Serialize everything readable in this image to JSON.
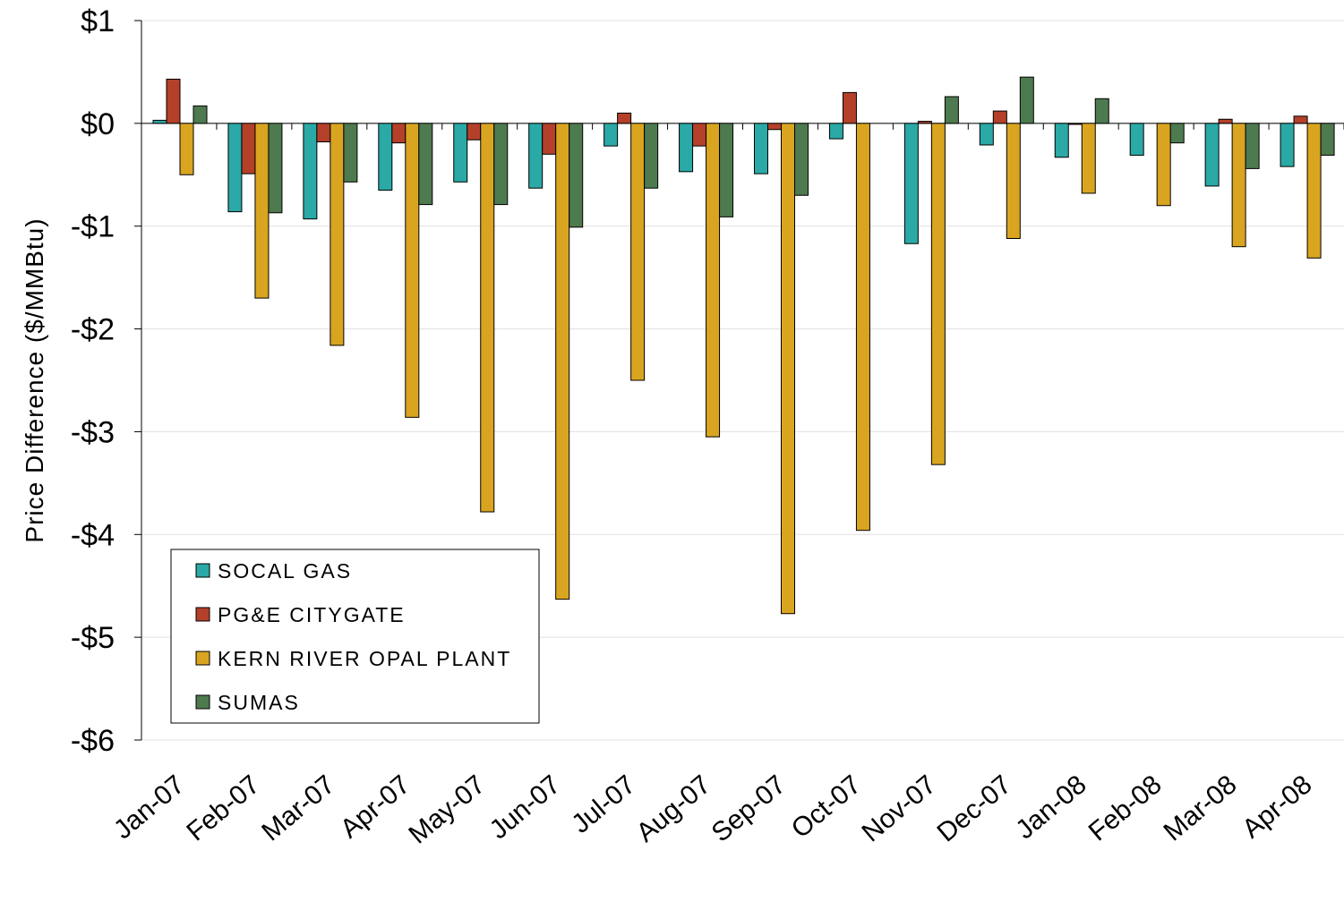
{
  "chart_data": {
    "type": "bar",
    "y_axis_label": "Price Difference  ($/MMBtu)",
    "categories": [
      "Jan-07",
      "Feb-07",
      "Mar-07",
      "Apr-07",
      "May-07",
      "Jun-07",
      "Jul-07",
      "Aug-07",
      "Sep-07",
      "Oct-07",
      "Nov-07",
      "Dec-07",
      "Jan-08",
      "Feb-08",
      "Mar-08",
      "Apr-08"
    ],
    "series": [
      {
        "name": "SOCAL GAS",
        "color": "#2aa9a6",
        "values": [
          0.03,
          -0.86,
          -0.93,
          -0.65,
          -0.57,
          -0.63,
          -0.22,
          -0.47,
          -0.49,
          -0.15,
          -1.17,
          -0.21,
          -0.33,
          -0.31,
          -0.61,
          -0.42
        ]
      },
      {
        "name": "PG&E CITYGATE",
        "color": "#b5402a",
        "values": [
          0.43,
          -0.49,
          -0.18,
          -0.19,
          -0.16,
          -0.3,
          0.1,
          -0.22,
          -0.06,
          0.3,
          0.02,
          0.12,
          -0.01,
          null,
          0.04,
          0.07
        ]
      },
      {
        "name": "KERN RIVER OPAL PLANT",
        "color": "#d9a520",
        "values": [
          -0.5,
          -1.7,
          -2.16,
          -2.86,
          -3.78,
          -4.63,
          -2.5,
          -3.05,
          -4.77,
          -3.96,
          -3.32,
          -1.12,
          -0.68,
          -0.8,
          -1.2,
          -1.31
        ]
      },
      {
        "name": "SUMAS",
        "color": "#4d7a4f",
        "values": [
          0.17,
          -0.87,
          -0.57,
          -0.79,
          -0.79,
          -1.01,
          -0.63,
          -0.91,
          -0.7,
          null,
          0.26,
          0.45,
          0.24,
          -0.19,
          -0.44,
          -0.31
        ]
      }
    ],
    "ylim": [
      -6,
      1
    ],
    "yticks": [
      {
        "value": -6,
        "label": "-$6"
      },
      {
        "value": -5,
        "label": "-$5"
      },
      {
        "value": -4,
        "label": "-$4"
      },
      {
        "value": -3,
        "label": "-$3"
      },
      {
        "value": -2,
        "label": "-$2"
      },
      {
        "value": -1,
        "label": "-$1"
      },
      {
        "value": 0,
        "label": "$0"
      },
      {
        "value": 1,
        "label": "$1"
      }
    ],
    "grid": true,
    "legend": "lower left"
  }
}
